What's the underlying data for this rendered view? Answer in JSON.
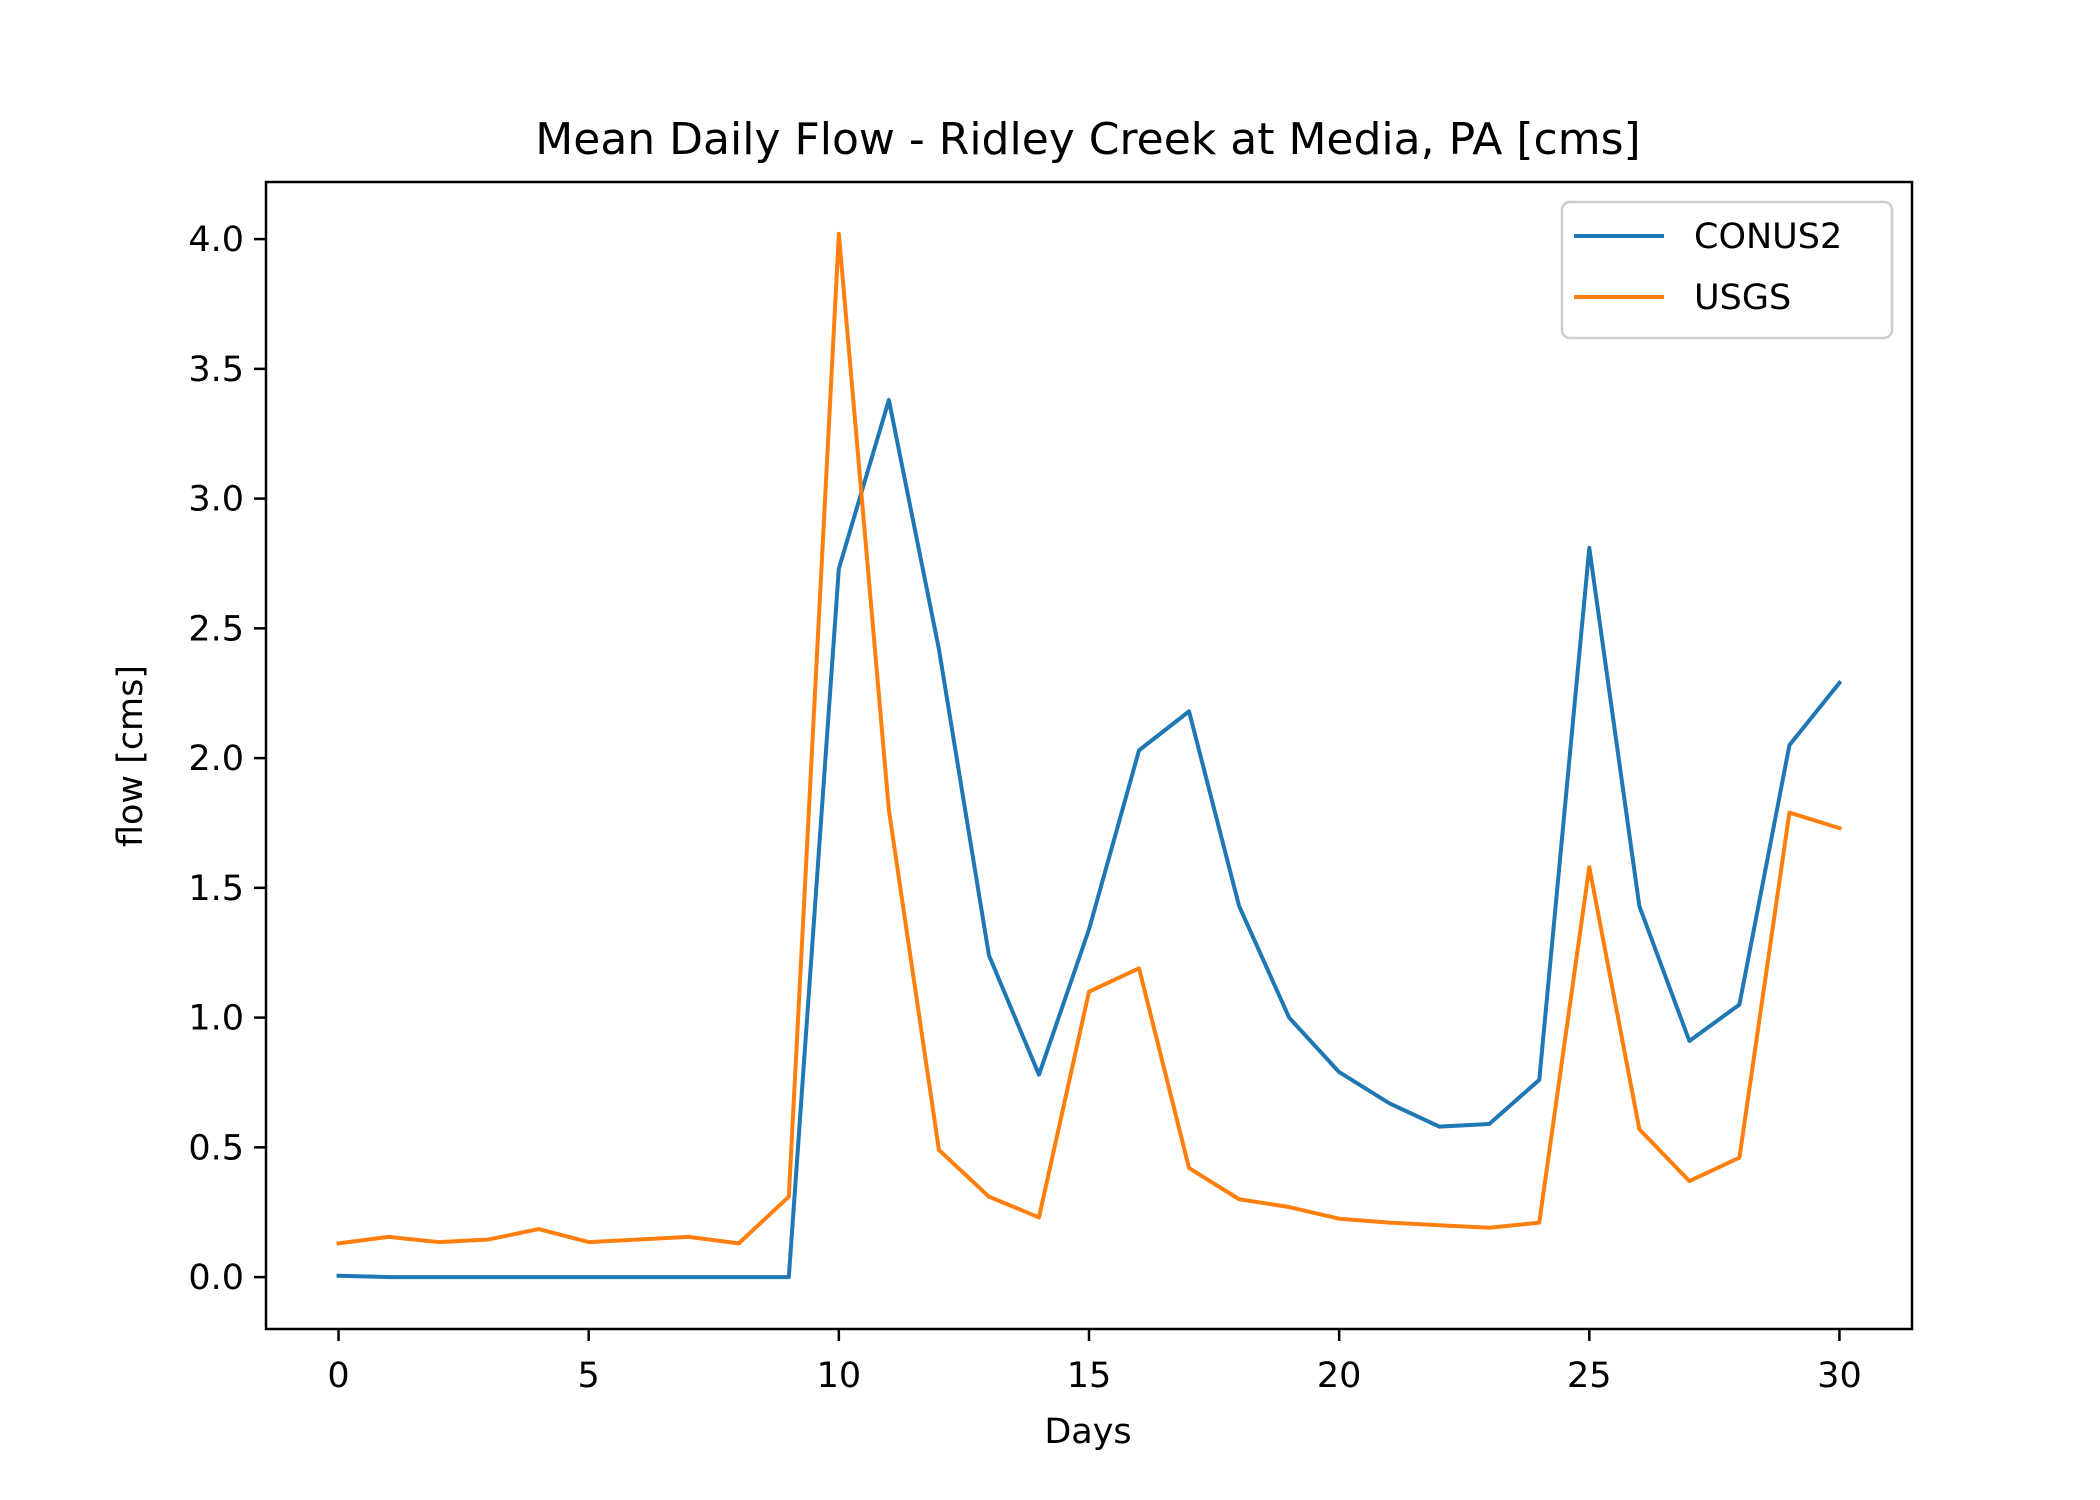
{
  "chart_data": {
    "type": "line",
    "title": "Mean Daily Flow - Ridley Creek at Media, PA [cms]",
    "xlabel": "Days",
    "ylabel": "flow [cms]",
    "xlim": [
      -1.45,
      31.45
    ],
    "ylim": [
      -0.2,
      4.22
    ],
    "xticks": [
      0,
      5,
      10,
      15,
      20,
      25,
      30
    ],
    "xtick_labels": [
      "0",
      "5",
      "10",
      "15",
      "20",
      "25",
      "30"
    ],
    "yticks": [
      0.0,
      0.5,
      1.0,
      1.5,
      2.0,
      2.5,
      3.0,
      3.5,
      4.0
    ],
    "ytick_labels": [
      "0.0",
      "0.5",
      "1.0",
      "1.5",
      "2.0",
      "2.5",
      "3.0",
      "3.5",
      "4.0"
    ],
    "grid": false,
    "legend_position": "top-right",
    "x": [
      0,
      1,
      2,
      3,
      4,
      5,
      6,
      7,
      8,
      9,
      10,
      11,
      12,
      13,
      14,
      15,
      16,
      17,
      18,
      19,
      20,
      21,
      22,
      23,
      24,
      25,
      26,
      27,
      28,
      29,
      30
    ],
    "series": [
      {
        "name": "CONUS2",
        "color": "#1f77b4",
        "values": [
          0.005,
          0.0,
          0.0,
          0.0,
          0.0,
          0.0,
          0.0,
          0.0,
          0.0,
          0.0,
          2.73,
          3.38,
          2.42,
          1.24,
          0.78,
          1.34,
          2.03,
          2.18,
          1.43,
          1.0,
          0.79,
          0.67,
          0.58,
          0.59,
          0.76,
          2.81,
          1.43,
          0.91,
          1.05,
          2.05,
          2.29
        ]
      },
      {
        "name": "USGS",
        "color": "#ff7f0e",
        "values": [
          0.13,
          0.155,
          0.135,
          0.145,
          0.185,
          0.135,
          0.145,
          0.155,
          0.13,
          0.31,
          4.02,
          1.8,
          0.49,
          0.31,
          0.23,
          1.1,
          1.19,
          0.42,
          0.3,
          0.27,
          0.225,
          0.21,
          0.2,
          0.19,
          0.21,
          1.58,
          0.57,
          0.37,
          0.46,
          1.79,
          1.73
        ]
      }
    ]
  }
}
